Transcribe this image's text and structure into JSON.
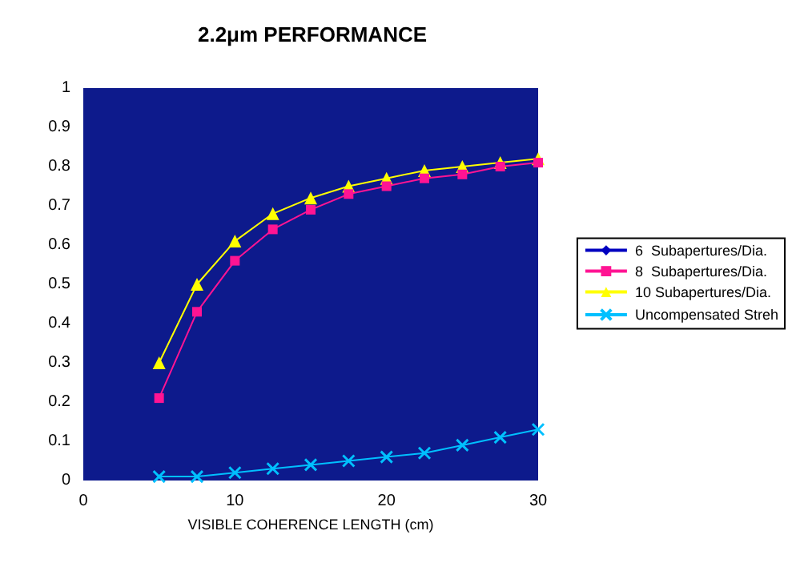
{
  "chart_data": {
    "type": "line",
    "title": "2.2μm PERFORMANCE",
    "xlabel": "VISIBLE COHERENCE LENGTH (cm)",
    "x": [
      5,
      7.5,
      10,
      12.5,
      15,
      17.5,
      20,
      22.5,
      25,
      27.5,
      30
    ],
    "series": [
      {
        "name": "6  Subapertures/Dia.",
        "color": "#0000c0",
        "marker": "diamond",
        "values": [
          null,
          null,
          null,
          null,
          null,
          null,
          null,
          null,
          null,
          null,
          null
        ]
      },
      {
        "name": "8  Subapertures/Dia.",
        "color": "#ff1493",
        "marker": "square",
        "values": [
          0.21,
          0.43,
          0.56,
          0.64,
          0.69,
          0.73,
          0.75,
          0.77,
          0.78,
          0.8,
          0.81
        ]
      },
      {
        "name": "10 Subapertures/Dia.",
        "color": "#ffff00",
        "marker": "triangle",
        "values": [
          0.3,
          0.5,
          0.61,
          0.68,
          0.72,
          0.75,
          0.77,
          0.79,
          0.8,
          0.81,
          0.82
        ]
      },
      {
        "name": "Uncompensated Streh",
        "color": "#00c0ff",
        "marker": "cross",
        "values": [
          0.01,
          0.01,
          0.02,
          0.03,
          0.04,
          0.05,
          0.06,
          0.07,
          0.09,
          0.11,
          0.13
        ]
      }
    ],
    "xlim": [
      0,
      30
    ],
    "xticks": [
      0,
      10,
      20,
      30
    ],
    "ylim": [
      0,
      1
    ],
    "yticks": [
      0,
      0.1,
      0.2,
      0.3,
      0.4,
      0.5,
      0.6,
      0.7,
      0.8,
      0.9,
      1
    ],
    "grid": false,
    "legend": "right",
    "line_style": "solid"
  }
}
